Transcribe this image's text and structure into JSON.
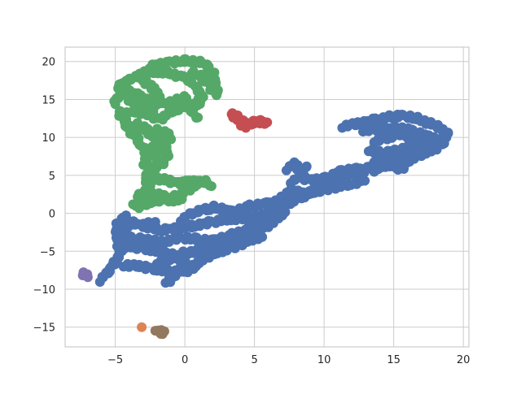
{
  "chart_data": {
    "type": "scatter",
    "title": "",
    "xlabel": "",
    "ylabel": "",
    "xlim": [
      -8.6,
      20.4
    ],
    "ylim": [
      -17.6,
      21.9
    ],
    "xticks": [
      -5,
      0,
      5,
      10,
      15,
      20
    ],
    "yticks": [
      -15,
      -10,
      -5,
      0,
      5,
      10,
      15,
      20
    ],
    "xtick_labels": [
      "−5",
      "0",
      "5",
      "10",
      "15",
      "20"
    ],
    "ytick_labels": [
      "−15",
      "−10",
      "−5",
      "0",
      "5",
      "10",
      "15",
      "20"
    ],
    "grid": true,
    "legend": "none",
    "series": [
      {
        "color": "#4c72b0",
        "paths": [
          [
            [
              -6.1,
              -8.8
            ],
            [
              -5.6,
              -7.8
            ],
            [
              -5.0,
              -6.5
            ],
            [
              -4.6,
              -5.2
            ],
            [
              -4.8,
              -3.6
            ],
            [
              -4.9,
              -1.8
            ],
            [
              -4.3,
              -0.4
            ],
            [
              -4.6,
              -2.6
            ],
            [
              -3.8,
              -1.2
            ],
            [
              -3.0,
              -1.6
            ],
            [
              -2.2,
              -1.2
            ]
          ],
          [
            [
              -4.4,
              -6.8
            ],
            [
              -3.2,
              -7.0
            ],
            [
              -2.2,
              -7.3
            ],
            [
              -1.2,
              -7.6
            ],
            [
              -0.2,
              -7.8
            ],
            [
              0.6,
              -7.2
            ],
            [
              1.2,
              -6.0
            ],
            [
              2.2,
              -5.2
            ],
            [
              3.4,
              -4.5
            ],
            [
              4.6,
              -3.6
            ],
            [
              5.6,
              -2.9
            ]
          ],
          [
            [
              -4.6,
              -4.3
            ],
            [
              -3.8,
              -4.4
            ],
            [
              -3.0,
              -4.6
            ],
            [
              -2.2,
              -4.9
            ],
            [
              -1.4,
              -5.2
            ],
            [
              -0.7,
              -5.6
            ],
            [
              0.0,
              -6.6
            ],
            [
              -0.8,
              -8.2
            ],
            [
              -1.3,
              -9.3
            ]
          ],
          [
            [
              -4.6,
              -3.2
            ],
            [
              -3.6,
              -3.3
            ],
            [
              -2.6,
              -3.5
            ],
            [
              -1.6,
              -3.9
            ],
            [
              -0.4,
              -3.2
            ],
            [
              0.8,
              -3.4
            ],
            [
              2.0,
              -3.6
            ],
            [
              3.2,
              -3.0
            ],
            [
              4.4,
              -2.2
            ],
            [
              5.4,
              -1.4
            ]
          ],
          [
            [
              -3.0,
              -1.6
            ],
            [
              -1.8,
              -2.2
            ],
            [
              -0.6,
              -2.0
            ],
            [
              0.6,
              -1.7
            ],
            [
              1.8,
              -1.2
            ],
            [
              3.0,
              -0.8
            ],
            [
              4.4,
              -0.6
            ],
            [
              5.8,
              -0.2
            ],
            [
              6.8,
              0.6
            ]
          ],
          [
            [
              -0.3,
              -0.8
            ],
            [
              0.6,
              0.1
            ],
            [
              1.6,
              0.6
            ],
            [
              2.2,
              0.8
            ],
            [
              3.4,
              0.2
            ],
            [
              4.6,
              0.9
            ],
            [
              5.8,
              1.3
            ],
            [
              6.8,
              1.6
            ],
            [
              7.4,
              2.6
            ],
            [
              8.0,
              3.2
            ]
          ],
          [
            [
              0.9,
              -4.5
            ],
            [
              1.8,
              -4.0
            ],
            [
              2.6,
              -4.8
            ],
            [
              3.4,
              -3.6
            ],
            [
              4.2,
              -2.8
            ],
            [
              5.0,
              -2.2
            ],
            [
              5.9,
              -1.6
            ],
            [
              6.6,
              -0.6
            ],
            [
              7.3,
              0.4
            ]
          ],
          [
            [
              -2.0,
              -6.4
            ],
            [
              -1.0,
              -6.0
            ],
            [
              0.0,
              -5.2
            ],
            [
              1.0,
              -5.0
            ],
            [
              2.0,
              -5.5
            ]
          ],
          [
            [
              6.9,
              0.5
            ],
            [
              7.6,
              1.5
            ],
            [
              8.4,
              2.2
            ],
            [
              9.2,
              2.8
            ],
            [
              10.0,
              3.6
            ],
            [
              10.8,
              4.4
            ],
            [
              11.6,
              5.1
            ],
            [
              12.4,
              5.5
            ],
            [
              13.2,
              6.0
            ],
            [
              14.0,
              6.3
            ],
            [
              14.8,
              6.4
            ],
            [
              15.6,
              6.0
            ]
          ],
          [
            [
              8.2,
              2.6
            ],
            [
              9.4,
              2.8
            ],
            [
              10.6,
              3.4
            ],
            [
              11.8,
              3.8
            ],
            [
              12.8,
              4.2
            ]
          ],
          [
            [
              7.6,
              4.2
            ],
            [
              8.3,
              4.8
            ],
            [
              9.0,
              4.4
            ],
            [
              10.2,
              4.6
            ],
            [
              11.2,
              5.6
            ],
            [
              12.2,
              5.8
            ],
            [
              13.0,
              5.6
            ]
          ],
          [
            [
              7.3,
              5.9
            ],
            [
              7.8,
              6.5
            ],
            [
              8.3,
              5.8
            ],
            [
              8.8,
              6.1
            ]
          ],
          [
            [
              11.3,
              11.5
            ],
            [
              12.5,
              11.8
            ],
            [
              13.8,
              12.4
            ],
            [
              14.8,
              12.7
            ],
            [
              15.6,
              12.9
            ],
            [
              16.6,
              12.5
            ],
            [
              17.6,
              11.9
            ],
            [
              18.4,
              11.2
            ],
            [
              18.8,
              10.5
            ],
            [
              18.5,
              9.4
            ],
            [
              18.0,
              8.6
            ],
            [
              17.2,
              8.0
            ],
            [
              16.6,
              7.4
            ],
            [
              15.6,
              6.5
            ]
          ],
          [
            [
              12.8,
              11.0
            ],
            [
              14.0,
              11.0
            ],
            [
              15.2,
              11.3
            ],
            [
              16.4,
              10.8
            ],
            [
              17.4,
              10.2
            ],
            [
              18.1,
              9.6
            ]
          ],
          [
            [
              13.6,
              9.6
            ],
            [
              14.6,
              9.9
            ],
            [
              15.6,
              10.6
            ],
            [
              16.5,
              9.6
            ],
            [
              17.5,
              9.1
            ]
          ],
          [
            [
              13.2,
              8.4
            ],
            [
              14.2,
              7.9
            ],
            [
              15.2,
              8.3
            ],
            [
              16.2,
              8.8
            ],
            [
              17.2,
              8.6
            ],
            [
              18.0,
              9.0
            ]
          ],
          [
            [
              13.6,
              7.0
            ],
            [
              14.6,
              7.4
            ],
            [
              15.6,
              7.8
            ],
            [
              16.6,
              8.3
            ]
          ],
          [
            [
              13.6,
              5.7
            ],
            [
              14.3,
              6.2
            ],
            [
              15.0,
              6.7
            ],
            [
              15.4,
              5.9
            ]
          ]
        ]
      },
      {
        "color": "#55a868",
        "paths": [
          [
            [
              -1.9,
              15.5
            ],
            [
              -2.4,
              16.6
            ],
            [
              -3.0,
              17.6
            ],
            [
              -2.8,
              18.6
            ],
            [
              -2.2,
              19.4
            ],
            [
              -1.2,
              19.9
            ],
            [
              0.0,
              20.1
            ],
            [
              1.0,
              20.0
            ],
            [
              1.6,
              19.4
            ],
            [
              2.0,
              18.4
            ],
            [
              2.1,
              17.4
            ],
            [
              2.2,
              16.4
            ],
            [
              2.3,
              15.8
            ]
          ],
          [
            [
              -4.9,
              16.6
            ],
            [
              -4.2,
              17.5
            ],
            [
              -3.2,
              18.2
            ],
            [
              -2.2,
              18.7
            ],
            [
              -1.2,
              18.5
            ],
            [
              -0.2,
              18.0
            ],
            [
              0.5,
              17.3
            ],
            [
              1.0,
              16.3
            ],
            [
              1.2,
              15.4
            ],
            [
              1.0,
              14.6
            ],
            [
              0.4,
              13.9
            ]
          ],
          [
            [
              -5.1,
              14.5
            ],
            [
              -4.8,
              15.4
            ],
            [
              -4.3,
              16.2
            ],
            [
              -3.5,
              15.7
            ],
            [
              -2.6,
              14.6
            ],
            [
              -1.6,
              14.4
            ],
            [
              -0.6,
              14.8
            ],
            [
              0.2,
              15.4
            ]
          ],
          [
            [
              -4.8,
              13.5
            ],
            [
              -4.4,
              12.5
            ],
            [
              -4.1,
              11.4
            ],
            [
              -3.6,
              10.2
            ],
            [
              -3.2,
              9.2
            ],
            [
              -2.8,
              8.2
            ],
            [
              -2.7,
              7.2
            ],
            [
              -2.9,
              6.2
            ]
          ],
          [
            [
              -4.4,
              13.0
            ],
            [
              -3.6,
              13.5
            ],
            [
              -2.6,
              13.0
            ],
            [
              -1.8,
              12.4
            ],
            [
              -1.0,
              13.4
            ],
            [
              0.0,
              14.0
            ],
            [
              0.6,
              13.4
            ],
            [
              0.9,
              12.4
            ]
          ],
          [
            [
              -3.6,
              11.8
            ],
            [
              -2.9,
              11.2
            ],
            [
              -2.3,
              10.2
            ],
            [
              -1.6,
              9.0
            ],
            [
              -1.2,
              8.2
            ],
            [
              -1.4,
              7.0
            ],
            [
              -2.0,
              6.2
            ],
            [
              -2.5,
              5.2
            ],
            [
              -2.8,
              4.4
            ],
            [
              -2.6,
              3.4
            ],
            [
              -2.9,
              2.4
            ],
            [
              -3.3,
              1.6
            ],
            [
              -3.6,
              1.0
            ]
          ],
          [
            [
              -2.2,
              11.0
            ],
            [
              -1.4,
              10.6
            ],
            [
              -1.0,
              10.0
            ],
            [
              -1.6,
              9.2
            ],
            [
              -2.2,
              8.6
            ],
            [
              -2.0,
              7.6
            ]
          ],
          [
            [
              -2.9,
              5.2
            ],
            [
              -2.2,
              4.6
            ],
            [
              -1.4,
              4.4
            ],
            [
              -0.6,
              4.0
            ],
            [
              0.2,
              4.1
            ],
            [
              1.0,
              4.2
            ],
            [
              1.6,
              4.2
            ],
            [
              1.8,
              3.6
            ]
          ],
          [
            [
              -3.5,
              2.3
            ],
            [
              -2.6,
              2.6
            ],
            [
              -1.8,
              2.4
            ],
            [
              -1.2,
              2.0
            ],
            [
              -0.6,
              2.2
            ],
            [
              0.0,
              2.8
            ],
            [
              0.4,
              3.4
            ],
            [
              0.8,
              3.8
            ]
          ],
          [
            [
              -3.4,
              0.8
            ],
            [
              -2.8,
              1.3
            ],
            [
              -2.2,
              1.6
            ],
            [
              -1.4,
              1.8
            ],
            [
              -0.6,
              1.7
            ],
            [
              -0.1,
              2.1
            ]
          ],
          [
            [
              0.4,
              18.6
            ],
            [
              1.2,
              18.0
            ],
            [
              1.8,
              17.2
            ],
            [
              2.0,
              16.2
            ],
            [
              2.4,
              15.7
            ]
          ],
          [
            [
              -4.2,
              15.4
            ],
            [
              -3.8,
              14.8
            ],
            [
              -3.3,
              14.3
            ],
            [
              -2.8,
              14.0
            ],
            [
              -2.2,
              13.6
            ]
          ]
        ]
      },
      {
        "color": "#c44e52",
        "paths": [
          [
            [
              3.3,
              13.1
            ],
            [
              3.7,
              12.7
            ],
            [
              4.0,
              12.3
            ],
            [
              4.3,
              11.8
            ],
            [
              4.1,
              11.4
            ],
            [
              4.6,
              11.7
            ],
            [
              5.0,
              12.0
            ],
            [
              5.4,
              12.1
            ],
            [
              5.7,
              12.0
            ],
            [
              5.9,
              11.9
            ]
          ]
        ]
      },
      {
        "color": "#8172b2",
        "paths": [
          [
            [
              -7.3,
              -8.0
            ],
            [
              -7.1,
              -8.1
            ],
            [
              -6.9,
              -8.2
            ]
          ]
        ]
      },
      {
        "color": "#dd8452",
        "paths": [
          [
            [
              -3.1,
              -15.0
            ]
          ]
        ]
      },
      {
        "color": "#937860",
        "paths": [
          [
            [
              -2.0,
              -15.4
            ],
            [
              -1.8,
              -15.6
            ],
            [
              -1.6,
              -15.7
            ],
            [
              -1.5,
              -15.8
            ]
          ]
        ]
      }
    ]
  }
}
